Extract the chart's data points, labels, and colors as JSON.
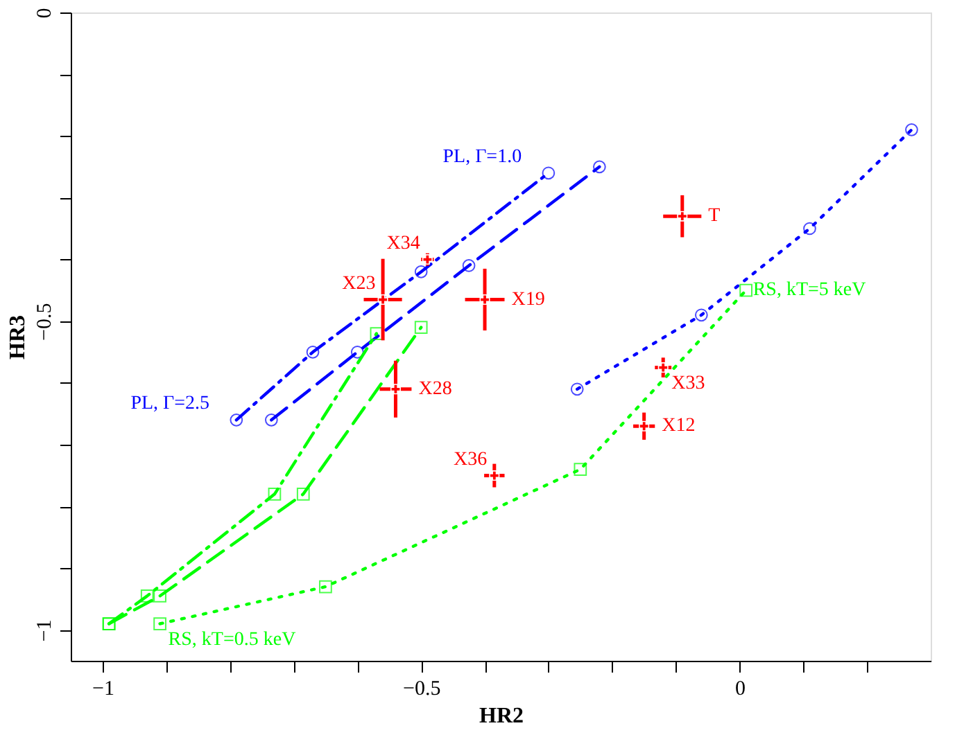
{
  "chart_data": {
    "type": "line",
    "xlabel": "HR2",
    "ylabel": "HR3",
    "xlim": [
      -1.05,
      0.3
    ],
    "ylim": [
      -1.05,
      0
    ],
    "xticks": [
      -1,
      {
        "value": -0.9,
        "label": null
      },
      {
        "value": -0.8,
        "label": null
      },
      {
        "value": -0.7,
        "label": null
      },
      {
        "value": -0.6,
        "label": null
      },
      -0.5,
      {
        "value": -0.4,
        "label": null
      },
      {
        "value": -0.3,
        "label": null
      },
      {
        "value": -0.2,
        "label": null
      },
      {
        "value": -0.1,
        "label": null
      },
      0,
      {
        "value": 0.1,
        "label": null
      },
      {
        "value": 0.2,
        "label": null
      }
    ],
    "yticks": [
      -1,
      {
        "value": -0.9,
        "label": null
      },
      {
        "value": -0.8,
        "label": null
      },
      {
        "value": -0.7,
        "label": null
      },
      {
        "value": -0.6,
        "label": null
      },
      -0.5,
      {
        "value": -0.4,
        "label": null
      },
      {
        "value": -0.3,
        "label": null
      },
      {
        "value": -0.2,
        "label": null
      },
      {
        "value": -0.1,
        "label": null
      },
      0
    ],
    "series": [
      {
        "color": "#0000ff",
        "line_style": "dashdot",
        "marker": "circle",
        "x": [
          -0.79,
          -0.67,
          -0.5,
          -0.3
        ],
        "values": [
          -0.66,
          -0.55,
          -0.42,
          -0.26
        ]
      },
      {
        "color": "#0000ff",
        "line_style": "dashed",
        "marker": "circle",
        "x": [
          -0.735,
          -0.6,
          -0.425,
          -0.22
        ],
        "values": [
          -0.66,
          -0.55,
          -0.41,
          -0.25
        ]
      },
      {
        "color": "#0000ff",
        "line_style": "dotted",
        "marker": "circle",
        "x": [
          -0.255,
          -0.06,
          0.11,
          0.27
        ],
        "values": [
          -0.61,
          -0.49,
          -0.35,
          -0.19
        ]
      },
      {
        "color": "#00ff00",
        "line_style": "dashdot",
        "marker": "square",
        "x": [
          -0.99,
          -0.93,
          -0.73,
          -0.57
        ],
        "values": [
          -0.99,
          -0.945,
          -0.78,
          -0.52
        ]
      },
      {
        "color": "#00ff00",
        "line_style": "dashed",
        "marker": "square",
        "x": [
          -0.99,
          -0.91,
          -0.685,
          -0.5
        ],
        "values": [
          -0.99,
          -0.945,
          -0.78,
          -0.51
        ]
      },
      {
        "color": "#00ff00",
        "line_style": "dotted",
        "marker": "square",
        "x": [
          -0.91,
          -0.65,
          -0.25,
          0.01
        ],
        "values": [
          -0.99,
          -0.93,
          -0.74,
          -0.45
        ]
      },
      {
        "type": "scatter",
        "color": "#ff0000",
        "marker": "cross",
        "x": [
          -0.56,
          -0.49,
          -0.4,
          -0.54,
          -0.09,
          -0.12,
          -0.15,
          -0.385
        ],
        "values": [
          -0.465,
          -0.4,
          -0.465,
          -0.61,
          -0.33,
          -0.575,
          -0.67,
          -0.75
        ],
        "xerrors": [
          0.03,
          0.01,
          0.031,
          0.025,
          0.03,
          0.013,
          0.017,
          0.016
        ],
        "errors": [
          0.066,
          0.01,
          0.05,
          0.046,
          0.034,
          0.016,
          0.022,
          0.019
        ]
      }
    ],
    "annotations": [
      {
        "text": "PL, Γ=1.0",
        "x": -0.3,
        "y": -0.26
      },
      {
        "text": "PL, Γ=2.5",
        "x": -0.79,
        "y": -0.66
      },
      {
        "text": "RS, kT=5 keV",
        "x": 0.01,
        "y": -0.45
      },
      {
        "text": "RS, kT=0.5 keV",
        "x": -0.91,
        "y": -0.99
      },
      {
        "text": "X23",
        "x": -0.56,
        "y": -0.465
      },
      {
        "text": "X34",
        "x": -0.49,
        "y": -0.4
      },
      {
        "text": "X19",
        "x": -0.4,
        "y": -0.465
      },
      {
        "text": "X28",
        "x": -0.54,
        "y": -0.61
      },
      {
        "text": "T",
        "x": -0.09,
        "y": -0.33
      },
      {
        "text": "X33",
        "x": -0.12,
        "y": -0.575
      },
      {
        "text": "X12",
        "x": -0.15,
        "y": -0.67
      },
      {
        "text": "X36",
        "x": -0.385,
        "y": -0.75
      }
    ]
  }
}
